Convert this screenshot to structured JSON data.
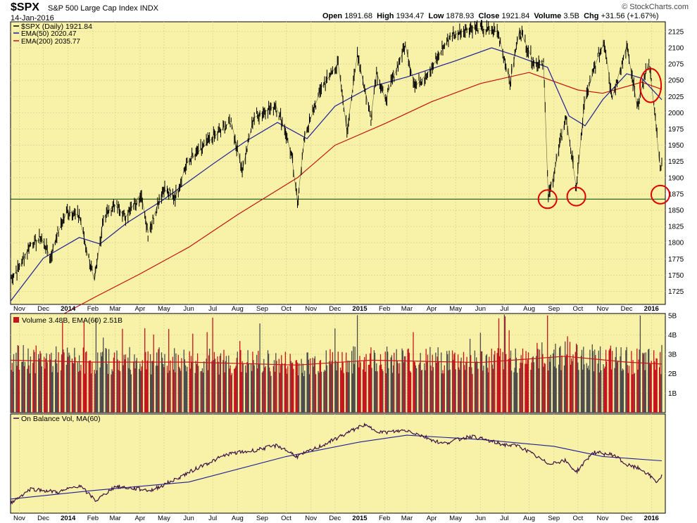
{
  "header": {
    "symbol": "$SPX",
    "name": "S&P 500 Large Cap Index",
    "exchange": "INDX",
    "date": "14-Jan-2016",
    "brand": "© StockCharts.com",
    "quote": {
      "open_label": "Open",
      "open": "1891.68",
      "high_label": "High",
      "high": "1934.47",
      "low_label": "Low",
      "low": "1878.93",
      "close_label": "Close",
      "close": "1921.84",
      "volume_label": "Volume",
      "volume": "3.5B",
      "chg_label": "Chg",
      "chg": "+31.56 (+1.67%)"
    }
  },
  "colors": {
    "panel_bg": "#F7F2A7",
    "price": "#000000",
    "ema50": "#1E1E9A",
    "ema200": "#C41010",
    "vol_up": "#4D4D4D",
    "vol_down": "#C8141E",
    "obv": "#3D1045",
    "obv_ma": "#1E1E9A",
    "support": "#004000",
    "annotation": "#E00000"
  },
  "chart_data": [
    {
      "type": "line",
      "panel": "price",
      "legend": [
        "$SPX (Daily) 1921.84",
        "EMA(50) 2020.47",
        "EMA(200) 2035.77"
      ],
      "x_ticks": [
        "Nov",
        "Dec",
        "2014",
        "Feb",
        "Mar",
        "Apr",
        "May",
        "Jun",
        "Jul",
        "Aug",
        "Sep",
        "Oct",
        "Nov",
        "Dec",
        "2015",
        "Feb",
        "Mar",
        "Apr",
        "May",
        "Jun",
        "Jul",
        "Aug",
        "Sep",
        "Oct",
        "Nov",
        "Dec",
        "2016"
      ],
      "y_ticks": [
        1725,
        1750,
        1775,
        1800,
        1825,
        1850,
        1875,
        1900,
        1925,
        1950,
        1975,
        2000,
        2025,
        2050,
        2075,
        2100,
        2125
      ],
      "ylim": [
        1705,
        2140
      ],
      "x_range": [
        "2013-10-21",
        "2016-01-14"
      ],
      "support_level": 1867,
      "annotations": [
        {
          "shape": "circle",
          "date": "2015-08-24",
          "value": 1867
        },
        {
          "shape": "circle",
          "date": "2015-09-29",
          "value": 1871
        },
        {
          "shape": "circle",
          "date": "2015-12-31",
          "value": 2042
        },
        {
          "shape": "circle",
          "date": "2016-01-14",
          "value": 1874
        }
      ],
      "series": [
        {
          "name": "$SPX (Daily) 1921.84",
          "dates": [
            "2013-10-21",
            "2013-11-01",
            "2013-11-15",
            "2013-11-29",
            "2013-12-10",
            "2013-12-18",
            "2013-12-31",
            "2014-01-15",
            "2014-01-24",
            "2014-02-03",
            "2014-02-14",
            "2014-02-28",
            "2014-03-14",
            "2014-03-31",
            "2014-04-04",
            "2014-04-11",
            "2014-04-30",
            "2014-05-15",
            "2014-05-30",
            "2014-06-30",
            "2014-07-24",
            "2014-08-07",
            "2014-08-21",
            "2014-09-18",
            "2014-09-30",
            "2014-10-08",
            "2014-10-15",
            "2014-10-24",
            "2014-11-14",
            "2014-12-05",
            "2014-12-16",
            "2014-12-29",
            "2015-01-15",
            "2015-01-22",
            "2015-02-02",
            "2015-02-27",
            "2015-03-11",
            "2015-03-31",
            "2015-04-24",
            "2015-05-21",
            "2015-06-23",
            "2015-07-08",
            "2015-07-20",
            "2015-08-07",
            "2015-08-19",
            "2015-08-25",
            "2015-09-16",
            "2015-09-29",
            "2015-10-09",
            "2015-10-23",
            "2015-11-03",
            "2015-11-13",
            "2015-12-01",
            "2015-12-14",
            "2015-12-29",
            "2016-01-06",
            "2016-01-11",
            "2016-01-14"
          ],
          "values": [
            1744,
            1762,
            1798,
            1806,
            1778,
            1812,
            1848,
            1842,
            1790,
            1741,
            1838,
            1859,
            1839,
            1872,
            1865,
            1815,
            1883,
            1870,
            1923,
            1960,
            1987,
            1910,
            1992,
            2011,
            1972,
            1932,
            1862,
            1964,
            2039,
            2075,
            1972,
            2090,
            1992,
            2063,
            2020,
            2104,
            2040,
            2067,
            2117,
            2131,
            2125,
            2046,
            2128,
            2077,
            2079,
            1867,
            1995,
            1884,
            2014,
            2075,
            2109,
            2023,
            2103,
            2012,
            2078,
            1990,
            1923,
            1922
          ]
        },
        {
          "name": "EMA(50) 2020.47",
          "dates": [
            "2013-10-21",
            "2013-12-01",
            "2014-01-15",
            "2014-02-10",
            "2014-03-15",
            "2014-04-30",
            "2014-06-30",
            "2014-08-10",
            "2014-09-20",
            "2014-10-27",
            "2014-12-01",
            "2015-01-15",
            "2015-03-01",
            "2015-05-01",
            "2015-06-15",
            "2015-07-15",
            "2015-08-24",
            "2015-09-20",
            "2015-10-10",
            "2015-11-01",
            "2015-12-01",
            "2015-12-20",
            "2016-01-14"
          ],
          "values": [
            1710,
            1776,
            1808,
            1798,
            1830,
            1866,
            1920,
            1955,
            1985,
            1960,
            2010,
            2040,
            2055,
            2080,
            2100,
            2088,
            2070,
            1995,
            1980,
            2020,
            2060,
            2053,
            2020
          ]
        },
        {
          "name": "EMA(200) 2035.77",
          "dates": [
            "2013-10-21",
            "2014-02-05",
            "2014-04-01",
            "2014-06-01",
            "2014-08-01",
            "2014-10-15",
            "2014-12-01",
            "2015-02-01",
            "2015-04-01",
            "2015-06-01",
            "2015-08-01",
            "2015-10-01",
            "2015-11-01",
            "2015-12-20",
            "2016-01-14"
          ],
          "values": [
            1647,
            1717,
            1752,
            1793,
            1843,
            1900,
            1950,
            1983,
            2017,
            2045,
            2062,
            2035,
            2030,
            2047,
            2036
          ]
        }
      ]
    },
    {
      "type": "bar",
      "panel": "volume",
      "legend": "Volume 3.48B, EMA(60) 2.51B",
      "y_ticks": [
        "1B",
        "2B",
        "3B",
        "4B",
        "5B"
      ],
      "ylim": [
        0,
        5.1
      ],
      "volume_ema60_dates": [
        "2013-10-21",
        "2014-02-01",
        "2014-06-01",
        "2014-10-15",
        "2015-01-15",
        "2015-06-01",
        "2015-09-15",
        "2015-12-01",
        "2016-01-14"
      ],
      "volume_ema60_values": [
        2.7,
        2.6,
        2.6,
        2.45,
        2.7,
        2.58,
        2.9,
        2.6,
        2.5
      ],
      "recent_volume": [
        "2015-08-24",
        5.0,
        "2015-12-18",
        5.0,
        "2016-01-14",
        3.48
      ]
    },
    {
      "type": "line",
      "panel": "obv",
      "legend": "On Balance Vol, MA(60)",
      "obv_dates": [
        "2013-10-21",
        "2013-11-15",
        "2013-12-20",
        "2014-01-15",
        "2014-02-05",
        "2014-03-01",
        "2014-04-15",
        "2014-05-15",
        "2014-06-15",
        "2014-07-20",
        "2014-08-15",
        "2014-09-20",
        "2014-10-15",
        "2014-11-15",
        "2014-12-15",
        "2015-01-05",
        "2015-01-30",
        "2015-03-01",
        "2015-04-15",
        "2015-05-20",
        "2015-06-30",
        "2015-07-20",
        "2015-08-24",
        "2015-09-15",
        "2015-09-29",
        "2015-10-20",
        "2015-11-15",
        "2015-12-01",
        "2015-12-20",
        "2016-01-08",
        "2016-01-14"
      ],
      "obv_values": [
        0.05,
        0.22,
        0.18,
        0.26,
        0.08,
        0.25,
        0.2,
        0.33,
        0.48,
        0.63,
        0.66,
        0.73,
        0.6,
        0.73,
        0.87,
        0.97,
        0.88,
        0.91,
        0.75,
        0.84,
        0.74,
        0.72,
        0.52,
        0.55,
        0.42,
        0.65,
        0.62,
        0.5,
        0.45,
        0.3,
        0.37
      ],
      "ma60_dates": [
        "2013-10-21",
        "2014-02-01",
        "2014-06-01",
        "2014-10-01",
        "2015-01-01",
        "2015-03-01",
        "2015-06-01",
        "2015-09-01",
        "2015-11-01",
        "2016-01-14"
      ],
      "ma60_values": [
        0.1,
        0.2,
        0.3,
        0.6,
        0.77,
        0.85,
        0.8,
        0.72,
        0.6,
        0.55
      ]
    }
  ]
}
